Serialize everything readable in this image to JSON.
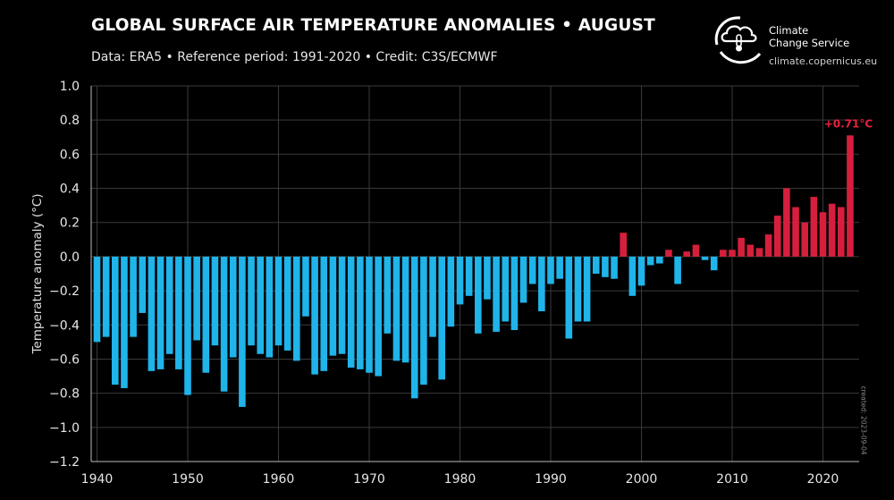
{
  "header": {
    "title": "GLOBAL SURFACE AIR TEMPERATURE ANOMALIES • AUGUST",
    "subtitle": "Data: ERA5 • Reference period: 1991-2020 • Credit: C3S/ECMWF"
  },
  "brand": {
    "name_line1": "Climate",
    "name_line2": "Change Service",
    "website": "climate.copernicus.eu",
    "logo_icon": "cloud-thermometer-icon"
  },
  "footnote": "created: 2023-09-04",
  "colors": {
    "background": "#000000",
    "negative_bar": "#1fb4ea",
    "positive_bar": "#d51f3c",
    "annotation": "#e8203f",
    "grid": "#3a3a3a"
  },
  "chart_data": {
    "type": "bar",
    "title": "GLOBAL SURFACE AIR TEMPERATURE ANOMALIES • AUGUST",
    "subtitle": "Data: ERA5 • Reference period: 1991-2020 • Credit: C3S/ECMWF",
    "xlabel": "",
    "ylabel": "Temperature anomaly (°C)",
    "ylim": [
      -1.2,
      1.0
    ],
    "yticks": [
      1.0,
      0.8,
      0.6,
      0.4,
      0.2,
      0.0,
      -0.2,
      -0.4,
      -0.6,
      -0.8,
      -1.0,
      -1.2
    ],
    "ytick_labels": [
      "1.0",
      "0.8",
      "0.6",
      "0.4",
      "0.2",
      "0.0",
      "−0.2",
      "−0.4",
      "−0.6",
      "−0.8",
      "−1.0",
      "−1.2"
    ],
    "xticks": [
      1940,
      1950,
      1960,
      1970,
      1980,
      1990,
      2000,
      2010,
      2020
    ],
    "grid": true,
    "annotation": {
      "year": 2023,
      "text": "+0.71°C"
    },
    "years": [
      1940,
      1941,
      1942,
      1943,
      1944,
      1945,
      1946,
      1947,
      1948,
      1949,
      1950,
      1951,
      1952,
      1953,
      1954,
      1955,
      1956,
      1957,
      1958,
      1959,
      1960,
      1961,
      1962,
      1963,
      1964,
      1965,
      1966,
      1967,
      1968,
      1969,
      1970,
      1971,
      1972,
      1973,
      1974,
      1975,
      1976,
      1977,
      1978,
      1979,
      1980,
      1981,
      1982,
      1983,
      1984,
      1985,
      1986,
      1987,
      1988,
      1989,
      1990,
      1991,
      1992,
      1993,
      1994,
      1995,
      1996,
      1997,
      1998,
      1999,
      2000,
      2001,
      2002,
      2003,
      2004,
      2005,
      2006,
      2007,
      2008,
      2009,
      2010,
      2011,
      2012,
      2013,
      2014,
      2015,
      2016,
      2017,
      2018,
      2019,
      2020,
      2021,
      2022,
      2023
    ],
    "values": [
      -0.5,
      -0.47,
      -0.75,
      -0.77,
      -0.47,
      -0.33,
      -0.67,
      -0.66,
      -0.57,
      -0.66,
      -0.81,
      -0.49,
      -0.68,
      -0.52,
      -0.79,
      -0.59,
      -0.88,
      -0.52,
      -0.57,
      -0.59,
      -0.52,
      -0.55,
      -0.61,
      -0.35,
      -0.69,
      -0.67,
      -0.58,
      -0.57,
      -0.65,
      -0.66,
      -0.68,
      -0.7,
      -0.45,
      -0.61,
      -0.62,
      -0.83,
      -0.75,
      -0.47,
      -0.72,
      -0.41,
      -0.28,
      -0.23,
      -0.45,
      -0.25,
      -0.44,
      -0.38,
      -0.43,
      -0.27,
      -0.16,
      -0.32,
      -0.16,
      -0.13,
      -0.48,
      -0.38,
      -0.38,
      -0.1,
      -0.12,
      -0.13,
      0.14,
      -0.23,
      -0.17,
      -0.05,
      -0.04,
      0.04,
      -0.16,
      0.03,
      0.07,
      -0.02,
      -0.08,
      0.04,
      0.04,
      0.11,
      0.07,
      0.05,
      0.13,
      0.24,
      0.4,
      0.29,
      0.2,
      0.35,
      0.26,
      0.31,
      0.29,
      0.71
    ]
  }
}
